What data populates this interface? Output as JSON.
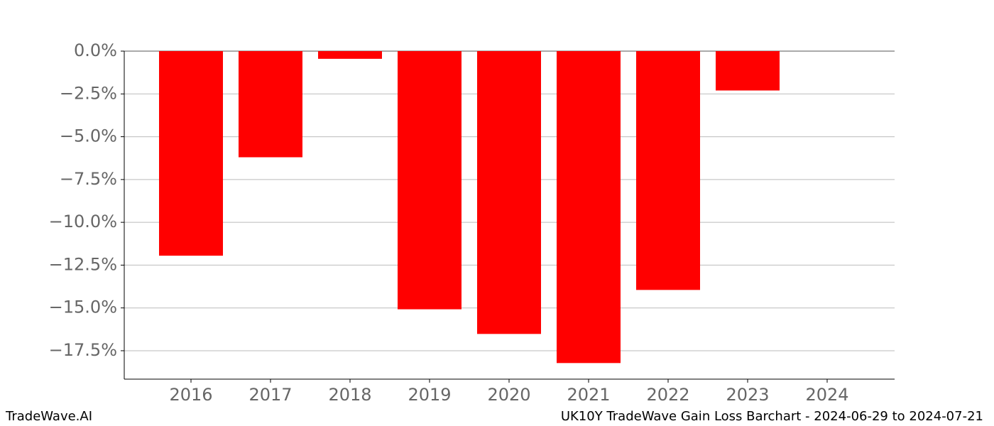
{
  "chart_data": {
    "type": "bar",
    "title": "UK10Y TradeWave Gain Loss Barchart - 2024-06-29 to 2024-07-21",
    "watermark": "TradeWave.AI",
    "categories": [
      "2016",
      "2017",
      "2018",
      "2019",
      "2020",
      "2021",
      "2022",
      "2023",
      "2024"
    ],
    "values": [
      -11.95,
      -6.2,
      -0.45,
      -15.08,
      -16.52,
      -18.22,
      -13.95,
      -2.3,
      null
    ],
    "color": "#ff0000",
    "ylim": [
      -19.16,
      0
    ],
    "yticks": [
      {
        "value": 0,
        "label": "0.0%"
      },
      {
        "value": -2.5,
        "label": "−2.5%"
      },
      {
        "value": -5,
        "label": "−5.0%"
      },
      {
        "value": -7.5,
        "label": "−7.5%"
      },
      {
        "value": -10,
        "label": "−10.0%"
      },
      {
        "value": -12.5,
        "label": "−12.5%"
      },
      {
        "value": -15,
        "label": "−15.0%"
      },
      {
        "value": -17.5,
        "label": "−17.5%"
      }
    ],
    "grid": true
  }
}
